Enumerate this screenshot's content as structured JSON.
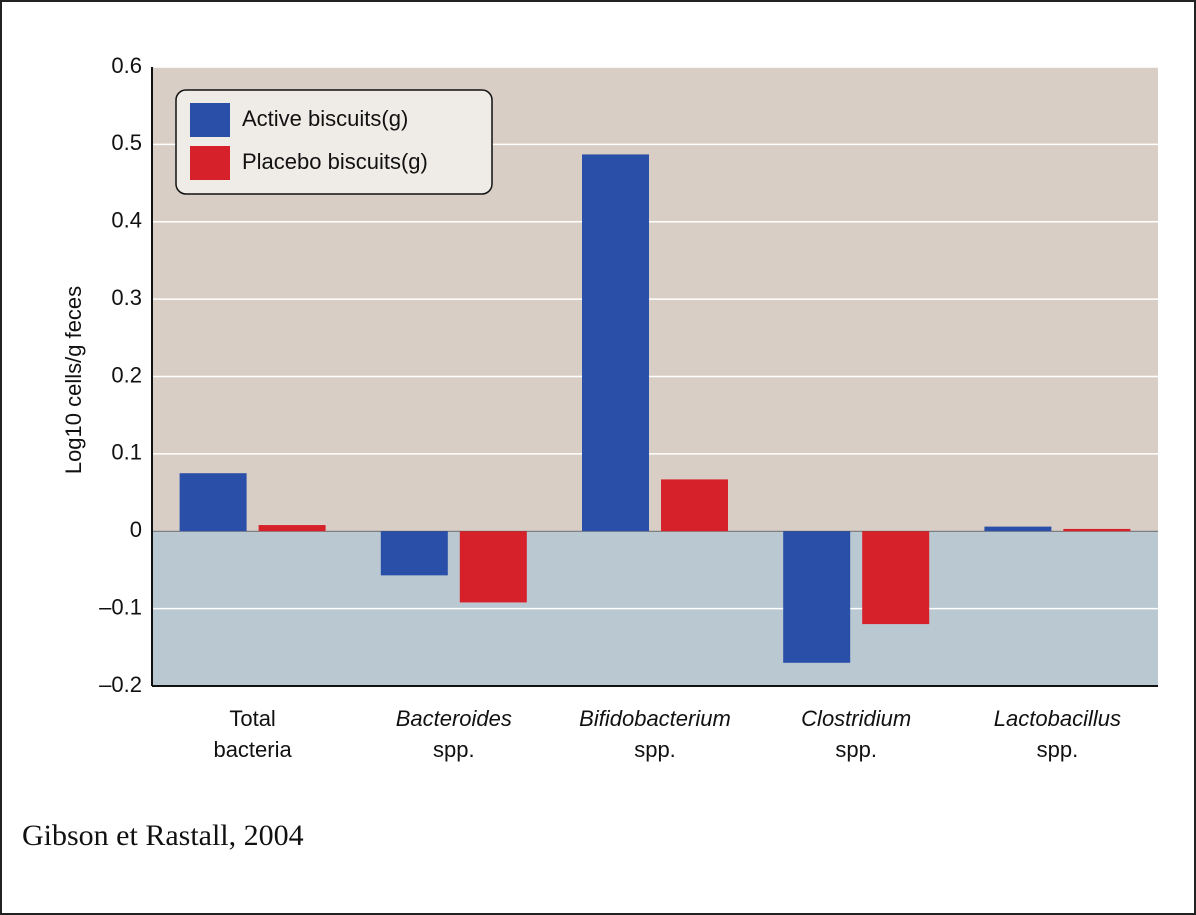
{
  "chart_data": {
    "type": "bar",
    "y_label": "Log10 cells/g feces",
    "categories": [
      [
        "Total",
        "bacteria"
      ],
      [
        "Bacteroides",
        "spp."
      ],
      [
        "Bifidobacterium",
        "spp."
      ],
      [
        "Clostridium",
        "spp."
      ],
      [
        "Lactobacillus",
        "spp."
      ]
    ],
    "series": [
      {
        "name": "Active biscuits(g)",
        "color": "#2a4fa8",
        "values": [
          0.075,
          -0.057,
          0.487,
          -0.17,
          0.006
        ]
      },
      {
        "name": "Placebo biscuits(g)",
        "color": "#d6202a",
        "values": [
          0.008,
          -0.092,
          0.067,
          -0.12,
          0.003
        ]
      }
    ],
    "ylim": [
      -0.2,
      0.6
    ],
    "yticks": [
      {
        "value": -0.2,
        "label": "–0.2"
      },
      {
        "value": -0.1,
        "label": "–0.1"
      },
      0,
      0.1,
      0.2,
      0.3,
      0.4,
      0.5,
      0.6
    ],
    "grid": true,
    "legend": "upper left",
    "source": "Gibson et Rastall, 2004"
  }
}
